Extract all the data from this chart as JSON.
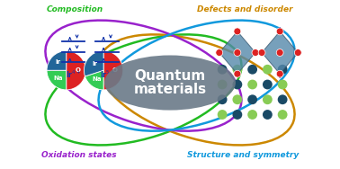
{
  "title_line1": "Quantum",
  "title_line2": "materials",
  "title_color": "white",
  "title_fontsize": 11,
  "bg_color": "white",
  "labels": {
    "composition": "Composition",
    "defects": "Defects and disorder",
    "oxidation": "Oxidation states",
    "structure": "Structure and symmetry"
  },
  "label_colors": {
    "composition": "#22bb22",
    "defects": "#cc8800",
    "oxidation": "#9922cc",
    "structure": "#1199dd"
  },
  "ellipse_colors": {
    "composition": "#22bb22",
    "defects": "#cc8800",
    "oxidation": "#9922cc",
    "structure": "#1199dd"
  },
  "pie1_colors": [
    "#dd2222",
    "#33cc55",
    "#226699"
  ],
  "pie1_sizes": [
    0.5,
    0.25,
    0.25
  ],
  "pie1_labels": [
    "O",
    "Na",
    "Ir"
  ],
  "pie2_colors": [
    "#dd2222",
    "#33cc55",
    "#226699"
  ],
  "pie2_sizes": [
    0.5,
    0.2,
    0.3
  ],
  "pie2_labels": [
    "O",
    "Na",
    "Ir"
  ],
  "dot_color_green": "#88cc55",
  "dot_color_blue": "#1a4a66",
  "quantum_ellipse_color": "#6a7a88",
  "crystal_color": "#5588aa",
  "crystal_dot_color": "#dd2222",
  "energy_color": "#1133aa"
}
